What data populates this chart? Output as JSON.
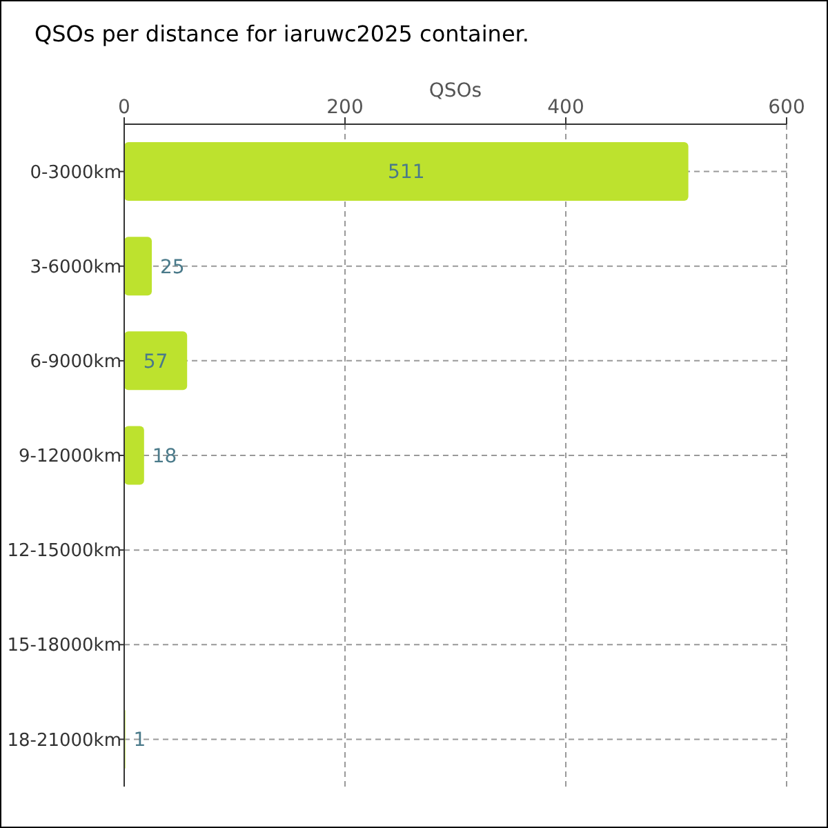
{
  "chart_data": {
    "type": "bar",
    "orientation": "horizontal",
    "title": "QSOs per distance for iaruwc2025 container.",
    "xlabel": "QSOs",
    "categories": [
      "0-3000km",
      "3-6000km",
      "6-9000km",
      "9-12000km",
      "12-15000km",
      "15-18000km",
      "18-21000km"
    ],
    "values": [
      511,
      25,
      57,
      18,
      0,
      0,
      1
    ],
    "value_labels": [
      "511",
      "25",
      "57",
      "18",
      null,
      null,
      "1"
    ],
    "color": "#bde22e",
    "xlim": [
      0,
      600
    ],
    "xticks": [
      0,
      200,
      400,
      600
    ],
    "grid": true
  }
}
